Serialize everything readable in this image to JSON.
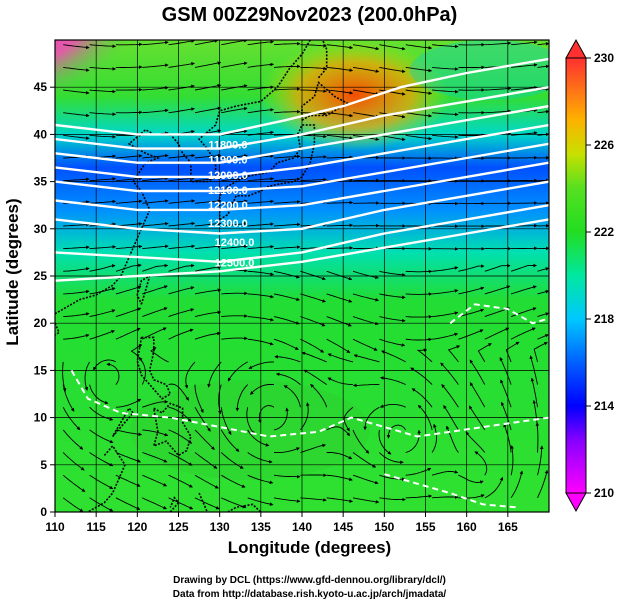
{
  "title": "GSM 00Z29Nov2023 (200.0hPa)",
  "x_axis": {
    "label": "Longitude (degrees)",
    "min": 110,
    "max": 170,
    "ticks": [
      "110",
      "115",
      "120",
      "125",
      "130",
      "135",
      "140",
      "145",
      "150",
      "155",
      "160",
      "165"
    ]
  },
  "y_axis": {
    "label": "Latitude  (degrees)",
    "min": 0,
    "max": 50,
    "ticks": [
      "0",
      "5",
      "10",
      "15",
      "20",
      "25",
      "30",
      "35",
      "40",
      "45"
    ]
  },
  "colorbar": {
    "min": 210,
    "max": 230,
    "ticks": [
      "210",
      "214",
      "218",
      "222",
      "226",
      "230"
    ]
  },
  "contour_labels": [
    "11800.0",
    "11900.0",
    "12000.0",
    "12100.0",
    "12200.0",
    "12300.0",
    "12400.0",
    "12500.0"
  ],
  "credits": {
    "line1": "Drawing by DCL (https://www.gfd-dennou.org/library/dcl/)",
    "line2": "Data from http://database.rish.kyoto-u.ac.jp/arch/jmadata/"
  },
  "colors": {
    "low": "#ff00ff",
    "blue": "#0000ff",
    "cyan": "#00c8ff",
    "green": "#22dd22",
    "high": "#ff4400"
  }
}
